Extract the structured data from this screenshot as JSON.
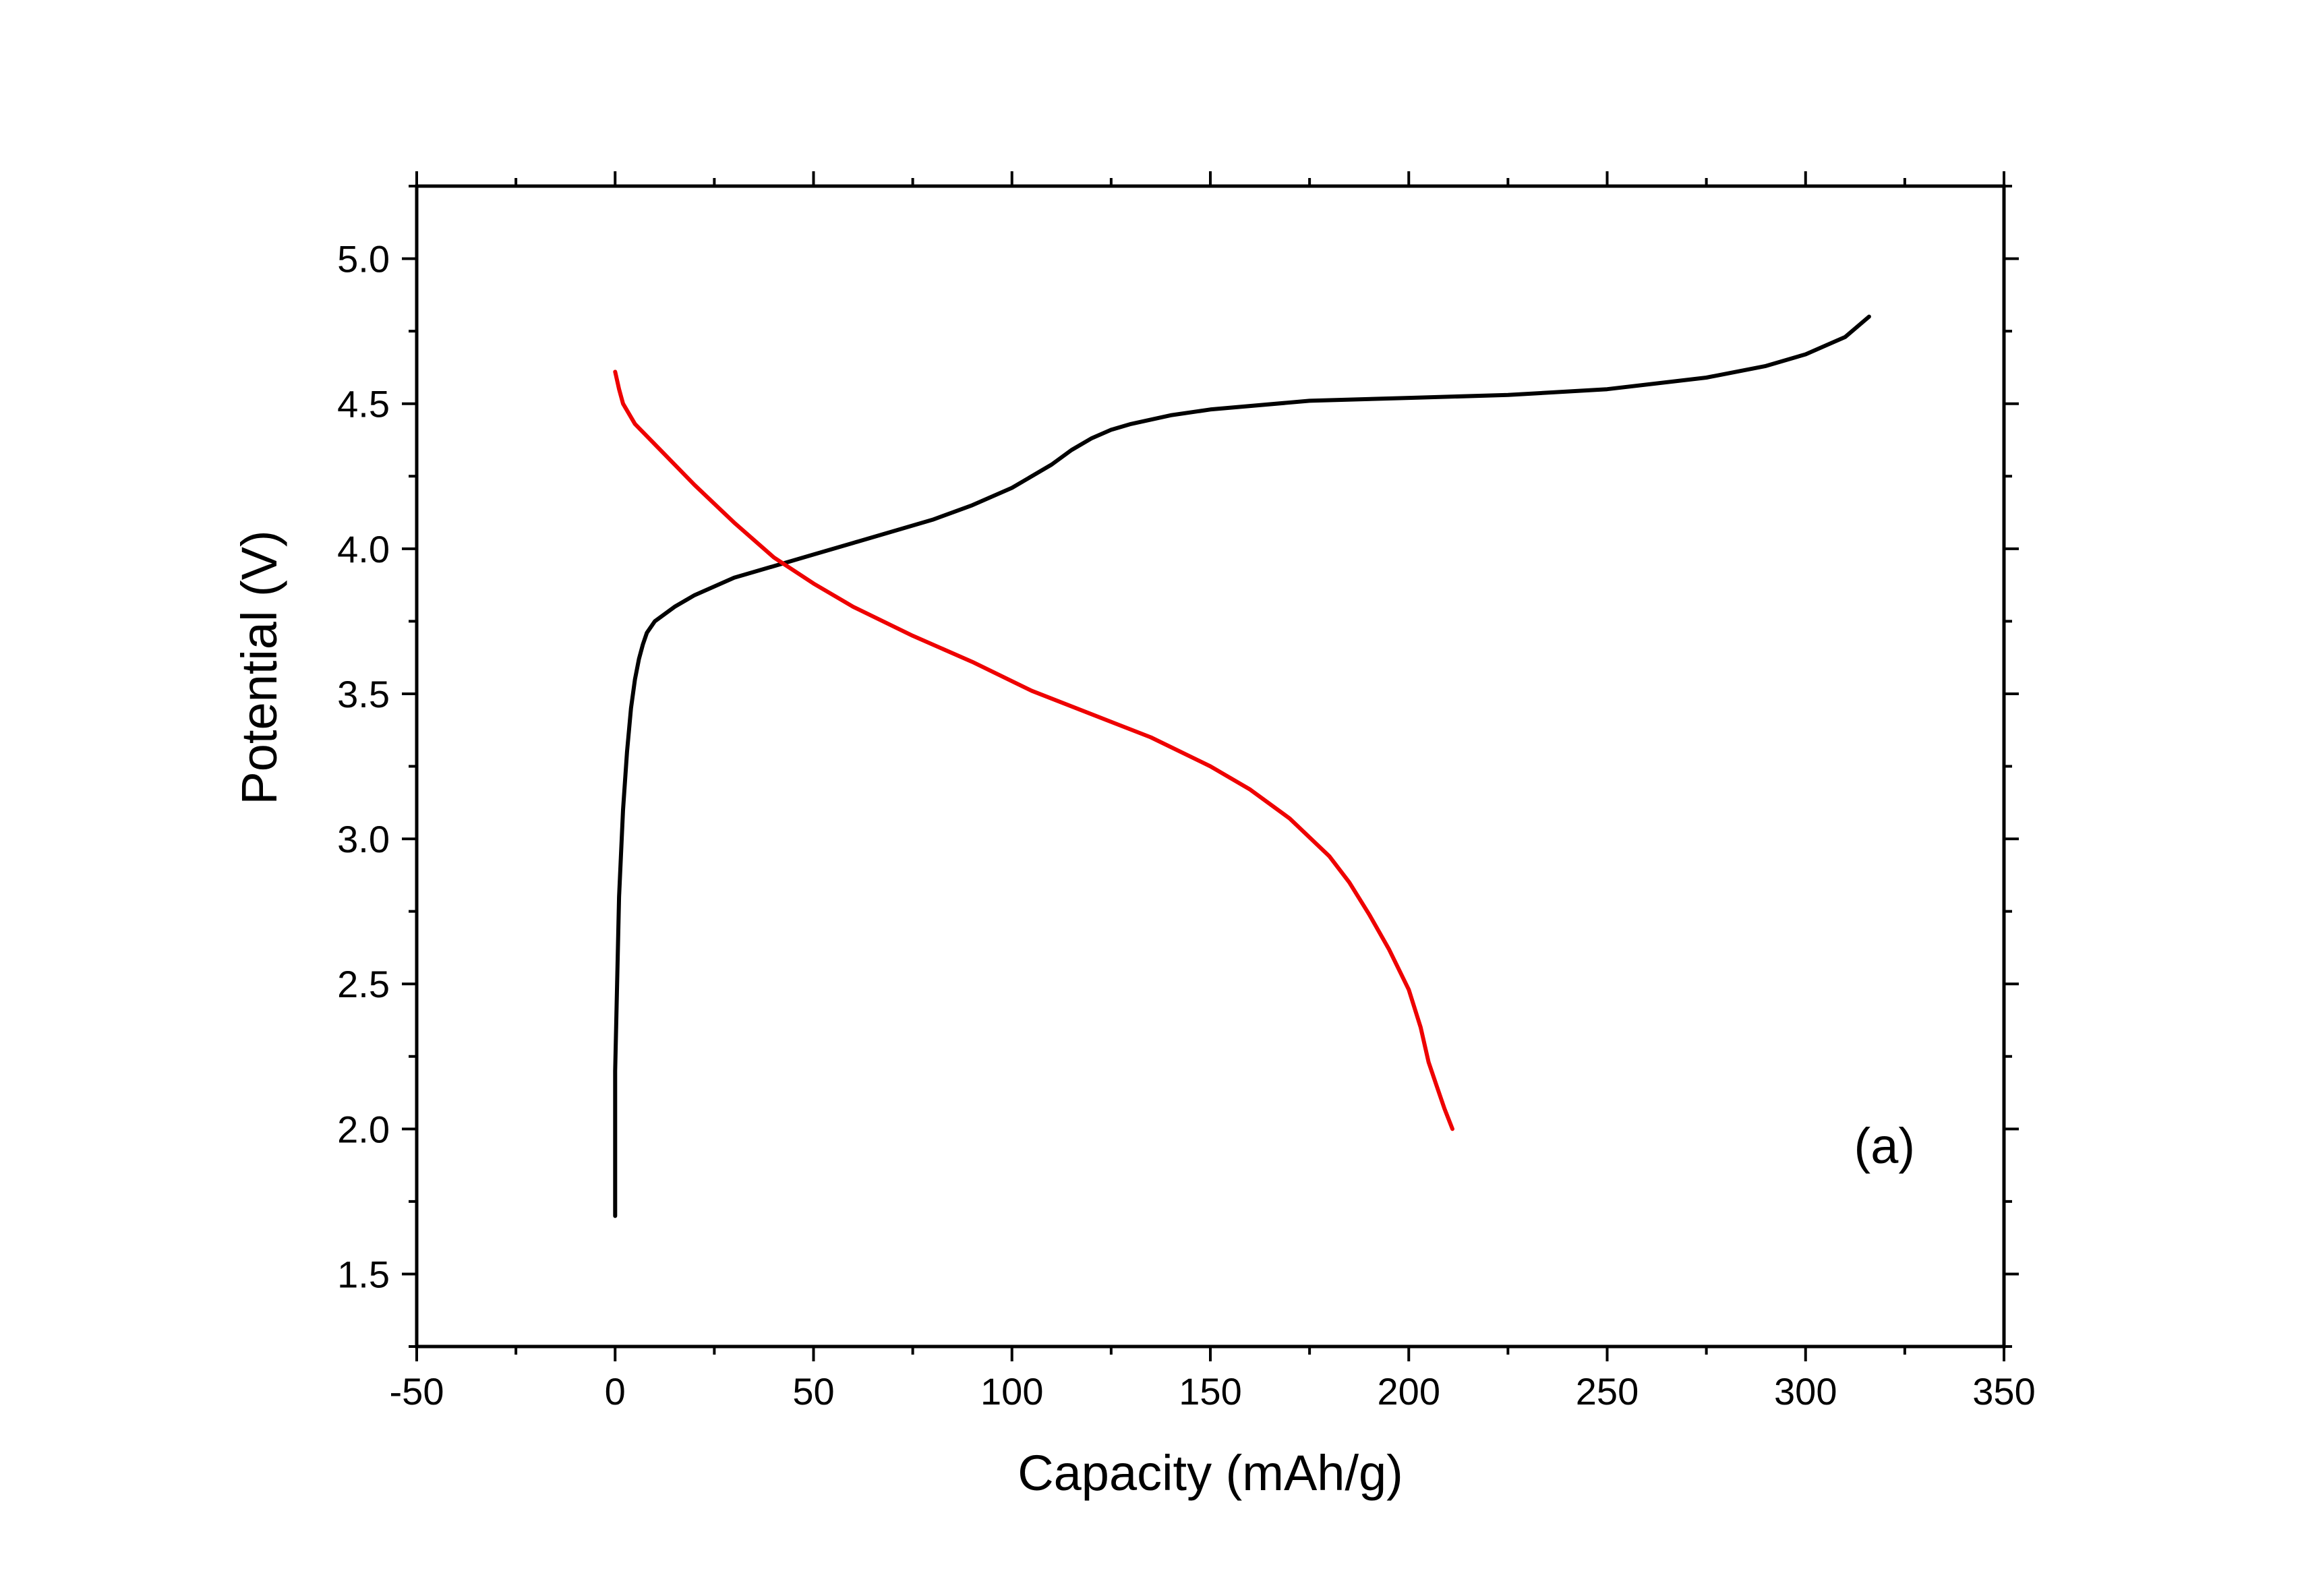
{
  "chart_data": {
    "type": "line",
    "title": "",
    "xlabel": "Capacity (mAh/g)",
    "ylabel": "Potential (V)",
    "xlim": [
      -50,
      350
    ],
    "ylim": [
      1.25,
      5.25
    ],
    "x_ticks": [
      -50,
      0,
      50,
      100,
      150,
      200,
      250,
      300,
      350
    ],
    "x_tick_labels": [
      "-50",
      "0",
      "50",
      "100",
      "150",
      "200",
      "250",
      "300",
      "350"
    ],
    "y_ticks": [
      1.5,
      2.0,
      2.5,
      3.0,
      3.5,
      4.0,
      4.5,
      5.0
    ],
    "y_tick_labels": [
      "1.5",
      "2.0",
      "2.5",
      "3.0",
      "3.5",
      "4.0",
      "4.5",
      "5.0"
    ],
    "grid": false,
    "annotation": "(a)",
    "series": [
      {
        "color": "#000000",
        "points": [
          [
            0,
            1.7
          ],
          [
            0,
            2.2
          ],
          [
            0.5,
            2.5
          ],
          [
            1,
            2.8
          ],
          [
            2,
            3.1
          ],
          [
            3,
            3.3
          ],
          [
            4,
            3.45
          ],
          [
            5,
            3.55
          ],
          [
            6,
            3.62
          ],
          [
            7,
            3.67
          ],
          [
            8,
            3.71
          ],
          [
            10,
            3.75
          ],
          [
            15,
            3.8
          ],
          [
            20,
            3.84
          ],
          [
            30,
            3.9
          ],
          [
            40,
            3.94
          ],
          [
            50,
            3.98
          ],
          [
            60,
            4.02
          ],
          [
            70,
            4.06
          ],
          [
            80,
            4.1
          ],
          [
            90,
            4.15
          ],
          [
            100,
            4.21
          ],
          [
            110,
            4.29
          ],
          [
            115,
            4.34
          ],
          [
            120,
            4.38
          ],
          [
            125,
            4.41
          ],
          [
            130,
            4.43
          ],
          [
            140,
            4.46
          ],
          [
            150,
            4.48
          ],
          [
            175,
            4.51
          ],
          [
            200,
            4.52
          ],
          [
            225,
            4.53
          ],
          [
            250,
            4.55
          ],
          [
            275,
            4.59
          ],
          [
            290,
            4.63
          ],
          [
            300,
            4.67
          ],
          [
            310,
            4.73
          ],
          [
            316,
            4.8
          ]
        ]
      },
      {
        "color": "#ee0000",
        "points": [
          [
            0,
            4.61
          ],
          [
            1,
            4.55
          ],
          [
            2,
            4.5
          ],
          [
            5,
            4.43
          ],
          [
            10,
            4.36
          ],
          [
            20,
            4.22
          ],
          [
            30,
            4.09
          ],
          [
            40,
            3.97
          ],
          [
            50,
            3.88
          ],
          [
            60,
            3.8
          ],
          [
            75,
            3.7
          ],
          [
            90,
            3.61
          ],
          [
            105,
            3.51
          ],
          [
            120,
            3.43
          ],
          [
            135,
            3.35
          ],
          [
            150,
            3.25
          ],
          [
            160,
            3.17
          ],
          [
            170,
            3.07
          ],
          [
            180,
            2.94
          ],
          [
            185,
            2.85
          ],
          [
            190,
            2.74
          ],
          [
            195,
            2.62
          ],
          [
            200,
            2.48
          ],
          [
            203,
            2.35
          ],
          [
            205,
            2.23
          ],
          [
            207,
            2.15
          ],
          [
            209,
            2.07
          ],
          [
            211,
            2.0
          ]
        ]
      }
    ]
  }
}
